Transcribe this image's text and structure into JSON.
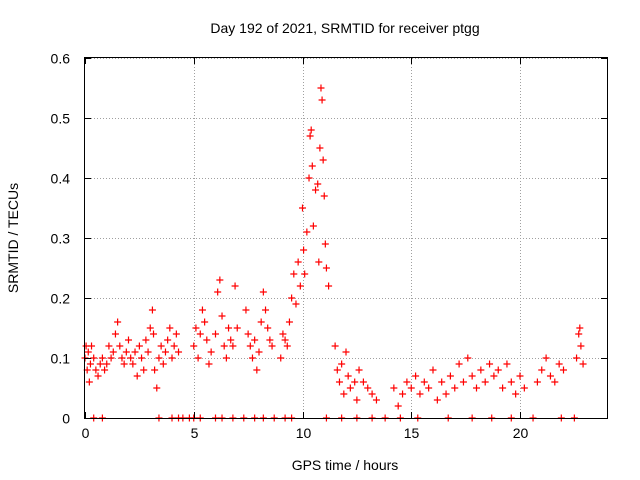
{
  "chart_data": {
    "type": "scatter",
    "title": "Day 192 of 2021, SRMTID for receiver ptgg",
    "xlabel": "GPS time / hours",
    "ylabel": "SRMTID / TECUs",
    "xlim": [
      0,
      24
    ],
    "ylim": [
      0,
      0.6
    ],
    "xticks": [
      0,
      5,
      10,
      15,
      20
    ],
    "yticks": [
      0,
      0.1,
      0.2,
      0.3,
      0.4,
      0.5,
      0.6
    ],
    "grid": true,
    "marker": "plus",
    "color": "#ff0000",
    "series": [
      {
        "name": "SRMTID",
        "points": [
          [
            0.0,
            0.1
          ],
          [
            0.05,
            0.12
          ],
          [
            0.1,
            0.08
          ],
          [
            0.15,
            0.11
          ],
          [
            0.2,
            0.06
          ],
          [
            0.25,
            0.09
          ],
          [
            0.3,
            0.12
          ],
          [
            0.4,
            0.1
          ],
          [
            0.5,
            0.08
          ],
          [
            0.6,
            0.07
          ],
          [
            0.7,
            0.09
          ],
          [
            0.8,
            0.1
          ],
          [
            0.9,
            0.08
          ],
          [
            1.0,
            0.09
          ],
          [
            1.1,
            0.12
          ],
          [
            1.2,
            0.1
          ],
          [
            1.3,
            0.11
          ],
          [
            1.4,
            0.14
          ],
          [
            1.5,
            0.16
          ],
          [
            1.6,
            0.12
          ],
          [
            1.7,
            0.1
          ],
          [
            1.8,
            0.09
          ],
          [
            1.9,
            0.11
          ],
          [
            2.0,
            0.13
          ],
          [
            2.1,
            0.1
          ],
          [
            2.2,
            0.09
          ],
          [
            2.3,
            0.11
          ],
          [
            2.4,
            0.07
          ],
          [
            2.5,
            0.12
          ],
          [
            2.6,
            0.1
          ],
          [
            2.7,
            0.08
          ],
          [
            2.8,
            0.13
          ],
          [
            2.9,
            0.11
          ],
          [
            3.0,
            0.15
          ],
          [
            3.1,
            0.18
          ],
          [
            3.15,
            0.14
          ],
          [
            3.2,
            0.08
          ],
          [
            3.3,
            0.05
          ],
          [
            3.4,
            0.1
          ],
          [
            3.5,
            0.12
          ],
          [
            3.6,
            0.09
          ],
          [
            3.7,
            0.11
          ],
          [
            3.8,
            0.13
          ],
          [
            3.9,
            0.15
          ],
          [
            4.0,
            0.1
          ],
          [
            4.1,
            0.12
          ],
          [
            4.2,
            0.14
          ],
          [
            4.3,
            0.11
          ],
          [
            5.0,
            0.12
          ],
          [
            5.1,
            0.15
          ],
          [
            5.2,
            0.1
          ],
          [
            5.3,
            0.14
          ],
          [
            5.4,
            0.18
          ],
          [
            5.5,
            0.16
          ],
          [
            5.6,
            0.13
          ],
          [
            5.7,
            0.09
          ],
          [
            5.8,
            0.11
          ],
          [
            6.0,
            0.14
          ],
          [
            6.1,
            0.21
          ],
          [
            6.2,
            0.23
          ],
          [
            6.3,
            0.17
          ],
          [
            6.4,
            0.12
          ],
          [
            6.5,
            0.1
          ],
          [
            6.6,
            0.15
          ],
          [
            6.7,
            0.13
          ],
          [
            6.8,
            0.12
          ],
          [
            6.9,
            0.22
          ],
          [
            7.0,
            0.15
          ],
          [
            7.4,
            0.18
          ],
          [
            7.5,
            0.14
          ],
          [
            7.6,
            0.12
          ],
          [
            7.7,
            0.1
          ],
          [
            7.8,
            0.13
          ],
          [
            7.9,
            0.08
          ],
          [
            8.0,
            0.11
          ],
          [
            8.1,
            0.16
          ],
          [
            8.2,
            0.21
          ],
          [
            8.3,
            0.18
          ],
          [
            8.4,
            0.15
          ],
          [
            8.5,
            0.13
          ],
          [
            8.6,
            0.12
          ],
          [
            9.0,
            0.1
          ],
          [
            9.1,
            0.14
          ],
          [
            9.2,
            0.13
          ],
          [
            9.3,
            0.12
          ],
          [
            9.4,
            0.16
          ],
          [
            9.5,
            0.2
          ],
          [
            9.6,
            0.24
          ],
          [
            9.7,
            0.19
          ],
          [
            9.8,
            0.26
          ],
          [
            9.9,
            0.22
          ],
          [
            10.0,
            0.35
          ],
          [
            10.05,
            0.28
          ],
          [
            10.1,
            0.24
          ],
          [
            10.2,
            0.31
          ],
          [
            10.3,
            0.4
          ],
          [
            10.35,
            0.47
          ],
          [
            10.4,
            0.48
          ],
          [
            10.45,
            0.42
          ],
          [
            10.5,
            0.32
          ],
          [
            10.6,
            0.38
          ],
          [
            10.7,
            0.39
          ],
          [
            10.75,
            0.26
          ],
          [
            10.8,
            0.45
          ],
          [
            10.85,
            0.55
          ],
          [
            10.9,
            0.53
          ],
          [
            10.95,
            0.43
          ],
          [
            11.0,
            0.37
          ],
          [
            11.05,
            0.29
          ],
          [
            11.1,
            0.25
          ],
          [
            11.2,
            0.22
          ],
          [
            11.5,
            0.12
          ],
          [
            11.6,
            0.08
          ],
          [
            11.7,
            0.06
          ],
          [
            11.8,
            0.09
          ],
          [
            11.9,
            0.04
          ],
          [
            12.0,
            0.11
          ],
          [
            12.1,
            0.07
          ],
          [
            12.2,
            0.05
          ],
          [
            12.4,
            0.06
          ],
          [
            12.5,
            0.03
          ],
          [
            12.6,
            0.08
          ],
          [
            12.8,
            0.06
          ],
          [
            13.0,
            0.05
          ],
          [
            13.2,
            0.04
          ],
          [
            13.4,
            0.03
          ],
          [
            14.2,
            0.05
          ],
          [
            14.4,
            0.02
          ],
          [
            14.6,
            0.04
          ],
          [
            14.8,
            0.06
          ],
          [
            15.0,
            0.05
          ],
          [
            15.2,
            0.07
          ],
          [
            15.4,
            0.04
          ],
          [
            15.6,
            0.06
          ],
          [
            15.8,
            0.05
          ],
          [
            16.0,
            0.08
          ],
          [
            16.2,
            0.03
          ],
          [
            16.4,
            0.06
          ],
          [
            16.6,
            0.04
          ],
          [
            16.8,
            0.07
          ],
          [
            17.0,
            0.05
          ],
          [
            17.2,
            0.09
          ],
          [
            17.4,
            0.06
          ],
          [
            17.6,
            0.1
          ],
          [
            17.8,
            0.07
          ],
          [
            18.0,
            0.05
          ],
          [
            18.2,
            0.08
          ],
          [
            18.4,
            0.06
          ],
          [
            18.6,
            0.09
          ],
          [
            18.8,
            0.07
          ],
          [
            19.0,
            0.08
          ],
          [
            19.2,
            0.05
          ],
          [
            19.4,
            0.09
          ],
          [
            19.6,
            0.06
          ],
          [
            19.8,
            0.04
          ],
          [
            20.0,
            0.07
          ],
          [
            20.2,
            0.05
          ],
          [
            20.8,
            0.06
          ],
          [
            21.0,
            0.08
          ],
          [
            21.2,
            0.1
          ],
          [
            21.4,
            0.07
          ],
          [
            21.6,
            0.06
          ],
          [
            21.8,
            0.09
          ],
          [
            22.0,
            0.08
          ],
          [
            22.6,
            0.1
          ],
          [
            22.7,
            0.14
          ],
          [
            22.75,
            0.15
          ],
          [
            22.8,
            0.12
          ],
          [
            22.9,
            0.09
          ]
        ]
      }
    ],
    "zero_points_x": [
      0.4,
      0.8,
      3.4,
      4.0,
      4.3,
      4.5,
      4.8,
      5.0,
      5.3,
      6.0,
      6.3,
      6.8,
      7.3,
      7.8,
      8.2,
      8.7,
      9.2,
      9.5,
      11.1,
      11.8,
      12.5,
      13.2,
      13.8,
      14.5,
      15.3,
      16.7,
      17.8,
      18.7,
      19.6,
      20.6,
      21.9,
      22.5
    ]
  }
}
